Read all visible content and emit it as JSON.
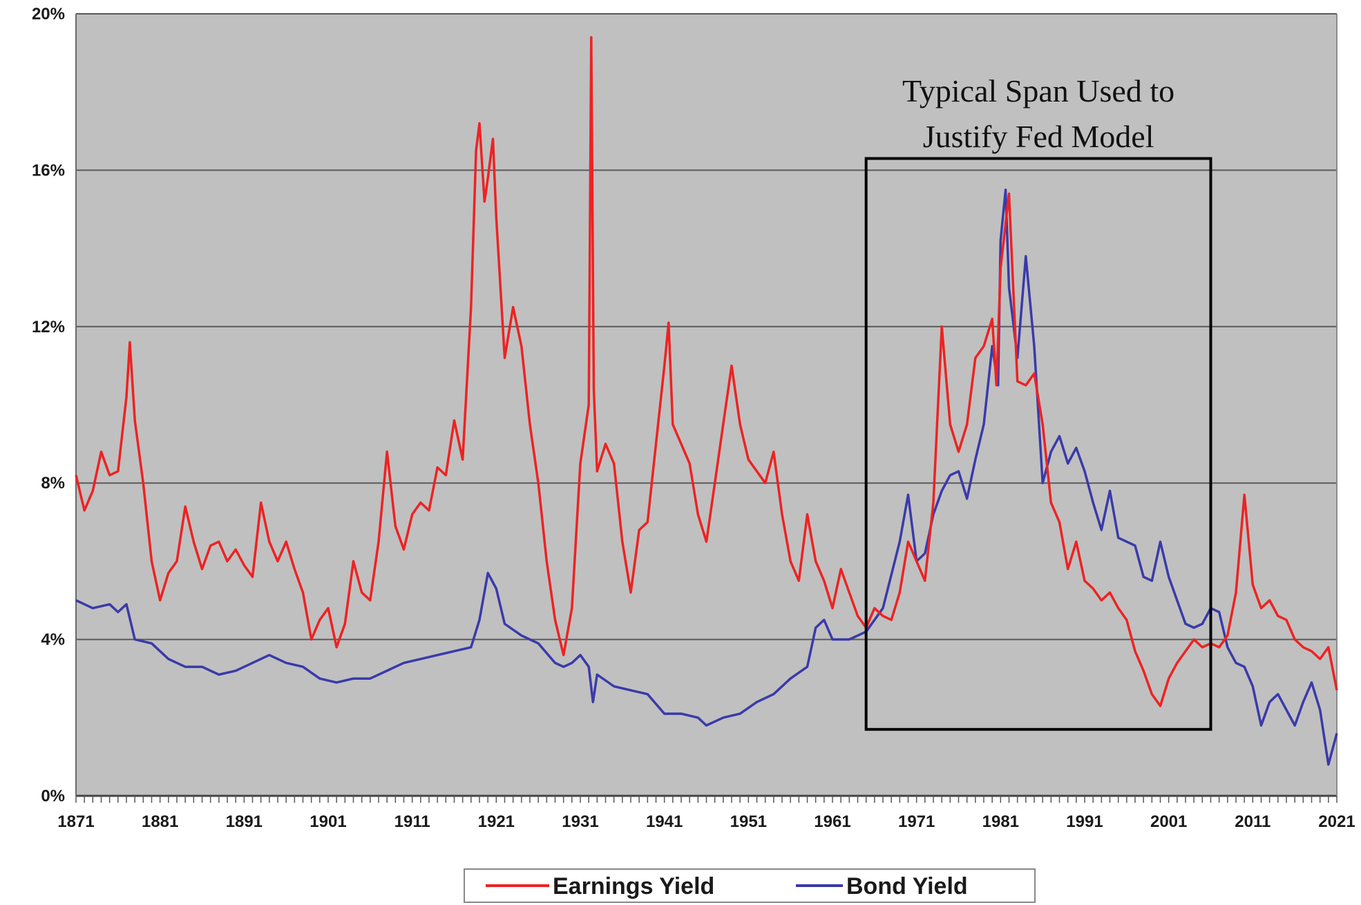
{
  "chart_data": {
    "type": "line",
    "title": "",
    "xlabel": "",
    "ylabel": "",
    "xlim": [
      1871,
      2021
    ],
    "ylim": [
      0,
      20
    ],
    "x_ticks": [
      "1871",
      "1881",
      "1891",
      "1901",
      "1911",
      "1921",
      "1931",
      "1941",
      "1951",
      "1961",
      "1971",
      "1981",
      "1991",
      "2001",
      "2011",
      "2021"
    ],
    "y_ticks": [
      {
        "value": 0,
        "label": "0%"
      },
      {
        "value": 4,
        "label": "4%"
      },
      {
        "value": 8,
        "label": "8%"
      },
      {
        "value": 12,
        "label": "12%"
      },
      {
        "value": 16,
        "label": "16%"
      },
      {
        "value": 20,
        "label": "20%"
      }
    ],
    "grid": true,
    "legend_position": "bottom-center",
    "plot_background": "#c0c0c0",
    "series": [
      {
        "name": "Earnings Yield",
        "color": "#ee2222",
        "points": [
          [
            1871,
            8.2
          ],
          [
            1872,
            7.3
          ],
          [
            1873,
            7.8
          ],
          [
            1874,
            8.8
          ],
          [
            1875,
            8.2
          ],
          [
            1876,
            8.3
          ],
          [
            1877,
            10.2
          ],
          [
            1877.4,
            11.6
          ],
          [
            1878,
            9.6
          ],
          [
            1879,
            8.0
          ],
          [
            1880,
            6.0
          ],
          [
            1881,
            5.0
          ],
          [
            1882,
            5.7
          ],
          [
            1883,
            6.0
          ],
          [
            1884,
            7.4
          ],
          [
            1885,
            6.5
          ],
          [
            1886,
            5.8
          ],
          [
            1887,
            6.4
          ],
          [
            1888,
            6.5
          ],
          [
            1889,
            6.0
          ],
          [
            1890,
            6.3
          ],
          [
            1891,
            5.9
          ],
          [
            1892,
            5.6
          ],
          [
            1893,
            7.5
          ],
          [
            1894,
            6.5
          ],
          [
            1895,
            6.0
          ],
          [
            1896,
            6.5
          ],
          [
            1897,
            5.8
          ],
          [
            1898,
            5.2
          ],
          [
            1899,
            4.0
          ],
          [
            1900,
            4.5
          ],
          [
            1901,
            4.8
          ],
          [
            1902,
            3.8
          ],
          [
            1903,
            4.4
          ],
          [
            1904,
            6.0
          ],
          [
            1905,
            5.2
          ],
          [
            1906,
            5.0
          ],
          [
            1907,
            6.5
          ],
          [
            1908,
            8.8
          ],
          [
            1909,
            6.9
          ],
          [
            1910,
            6.3
          ],
          [
            1911,
            7.2
          ],
          [
            1912,
            7.5
          ],
          [
            1913,
            7.3
          ],
          [
            1914,
            8.4
          ],
          [
            1915,
            8.2
          ],
          [
            1916,
            9.6
          ],
          [
            1917,
            8.6
          ],
          [
            1918,
            12.5
          ],
          [
            1918.6,
            16.5
          ],
          [
            1919,
            17.2
          ],
          [
            1919.6,
            15.2
          ],
          [
            1920,
            15.8
          ],
          [
            1920.6,
            16.8
          ],
          [
            1921,
            14.8
          ],
          [
            1922,
            11.2
          ],
          [
            1923,
            12.5
          ],
          [
            1924,
            11.5
          ],
          [
            1925,
            9.5
          ],
          [
            1926,
            8.0
          ],
          [
            1927,
            6.0
          ],
          [
            1928,
            4.5
          ],
          [
            1929,
            3.6
          ],
          [
            1930,
            4.8
          ],
          [
            1931,
            8.5
          ],
          [
            1932,
            10.0
          ],
          [
            1932.3,
            19.4
          ],
          [
            1932.6,
            10.4
          ],
          [
            1933,
            8.3
          ],
          [
            1934,
            9.0
          ],
          [
            1935,
            8.5
          ],
          [
            1936,
            6.5
          ],
          [
            1937,
            5.2
          ],
          [
            1938,
            6.8
          ],
          [
            1939,
            7.0
          ],
          [
            1940,
            9.0
          ],
          [
            1941,
            11.0
          ],
          [
            1941.5,
            12.1
          ],
          [
            1942,
            9.5
          ],
          [
            1943,
            9.0
          ],
          [
            1944,
            8.5
          ],
          [
            1945,
            7.2
          ],
          [
            1946,
            6.5
          ],
          [
            1947,
            8.0
          ],
          [
            1948,
            9.5
          ],
          [
            1949,
            11.0
          ],
          [
            1950,
            9.5
          ],
          [
            1951,
            8.6
          ],
          [
            1952,
            8.3
          ],
          [
            1953,
            8.0
          ],
          [
            1954,
            8.8
          ],
          [
            1955,
            7.2
          ],
          [
            1956,
            6.0
          ],
          [
            1957,
            5.5
          ],
          [
            1958,
            7.2
          ],
          [
            1959,
            6.0
          ],
          [
            1960,
            5.5
          ],
          [
            1961,
            4.8
          ],
          [
            1962,
            5.8
          ],
          [
            1963,
            5.2
          ],
          [
            1964,
            4.6
          ],
          [
            1965,
            4.3
          ],
          [
            1966,
            4.8
          ],
          [
            1967,
            4.6
          ],
          [
            1968,
            4.5
          ],
          [
            1969,
            5.2
          ],
          [
            1970,
            6.5
          ],
          [
            1971,
            6.0
          ],
          [
            1972,
            5.5
          ],
          [
            1973,
            7.5
          ],
          [
            1974,
            12.0
          ],
          [
            1975,
            9.5
          ],
          [
            1976,
            8.8
          ],
          [
            1977,
            9.5
          ],
          [
            1978,
            11.2
          ],
          [
            1979,
            11.5
          ],
          [
            1980,
            12.2
          ],
          [
            1980.5,
            10.5
          ],
          [
            1981,
            13.5
          ],
          [
            1982,
            15.4
          ],
          [
            1983,
            10.6
          ],
          [
            1984,
            10.5
          ],
          [
            1985,
            10.8
          ],
          [
            1986,
            9.5
          ],
          [
            1987,
            7.5
          ],
          [
            1988,
            7.0
          ],
          [
            1989,
            5.8
          ],
          [
            1990,
            6.5
          ],
          [
            1991,
            5.5
          ],
          [
            1992,
            5.3
          ],
          [
            1993,
            5.0
          ],
          [
            1994,
            5.2
          ],
          [
            1995,
            4.8
          ],
          [
            1996,
            4.5
          ],
          [
            1997,
            3.7
          ],
          [
            1998,
            3.2
          ],
          [
            1999,
            2.6
          ],
          [
            2000,
            2.3
          ],
          [
            2001,
            3.0
          ],
          [
            2002,
            3.4
          ],
          [
            2003,
            3.7
          ],
          [
            2004,
            4.0
          ],
          [
            2005,
            3.8
          ],
          [
            2006,
            3.9
          ],
          [
            2007,
            3.8
          ],
          [
            2008,
            4.1
          ],
          [
            2009,
            5.2
          ],
          [
            2010,
            7.7
          ],
          [
            2011,
            5.4
          ],
          [
            2012,
            4.8
          ],
          [
            2013,
            5.0
          ],
          [
            2014,
            4.6
          ],
          [
            2015,
            4.5
          ],
          [
            2016,
            4.0
          ],
          [
            2017,
            3.8
          ],
          [
            2018,
            3.7
          ],
          [
            2019,
            3.5
          ],
          [
            2020,
            3.8
          ],
          [
            2021,
            2.7
          ]
        ]
      },
      {
        "name": "Bond Yield",
        "color": "#3a3aaa",
        "points": [
          [
            1871,
            5.0
          ],
          [
            1873,
            4.8
          ],
          [
            1875,
            4.9
          ],
          [
            1876,
            4.7
          ],
          [
            1877,
            4.9
          ],
          [
            1878,
            4.0
          ],
          [
            1880,
            3.9
          ],
          [
            1882,
            3.5
          ],
          [
            1884,
            3.3
          ],
          [
            1886,
            3.3
          ],
          [
            1888,
            3.1
          ],
          [
            1890,
            3.2
          ],
          [
            1892,
            3.4
          ],
          [
            1894,
            3.6
          ],
          [
            1896,
            3.4
          ],
          [
            1898,
            3.3
          ],
          [
            1900,
            3.0
          ],
          [
            1902,
            2.9
          ],
          [
            1904,
            3.0
          ],
          [
            1906,
            3.0
          ],
          [
            1908,
            3.2
          ],
          [
            1910,
            3.4
          ],
          [
            1912,
            3.5
          ],
          [
            1914,
            3.6
          ],
          [
            1916,
            3.7
          ],
          [
            1918,
            3.8
          ],
          [
            1919,
            4.5
          ],
          [
            1920,
            5.7
          ],
          [
            1921,
            5.3
          ],
          [
            1922,
            4.4
          ],
          [
            1924,
            4.1
          ],
          [
            1926,
            3.9
          ],
          [
            1928,
            3.4
          ],
          [
            1929,
            3.3
          ],
          [
            1930,
            3.4
          ],
          [
            1931,
            3.6
          ],
          [
            1932,
            3.3
          ],
          [
            1932.5,
            2.4
          ],
          [
            1933,
            3.1
          ],
          [
            1935,
            2.8
          ],
          [
            1937,
            2.7
          ],
          [
            1939,
            2.6
          ],
          [
            1941,
            2.1
          ],
          [
            1943,
            2.1
          ],
          [
            1945,
            2.0
          ],
          [
            1946,
            1.8
          ],
          [
            1948,
            2.0
          ],
          [
            1950,
            2.1
          ],
          [
            1952,
            2.4
          ],
          [
            1954,
            2.6
          ],
          [
            1956,
            3.0
          ],
          [
            1958,
            3.3
          ],
          [
            1959,
            4.3
          ],
          [
            1960,
            4.5
          ],
          [
            1961,
            4.0
          ],
          [
            1963,
            4.0
          ],
          [
            1965,
            4.2
          ],
          [
            1967,
            4.8
          ],
          [
            1969,
            6.5
          ],
          [
            1970,
            7.7
          ],
          [
            1971,
            6.0
          ],
          [
            1972,
            6.2
          ],
          [
            1973,
            7.2
          ],
          [
            1974,
            7.8
          ],
          [
            1975,
            8.2
          ],
          [
            1976,
            8.3
          ],
          [
            1977,
            7.6
          ],
          [
            1978,
            8.6
          ],
          [
            1979,
            9.5
          ],
          [
            1980,
            11.5
          ],
          [
            1980.7,
            10.5
          ],
          [
            1981,
            14.2
          ],
          [
            1981.6,
            15.5
          ],
          [
            1982,
            13.0
          ],
          [
            1983,
            11.2
          ],
          [
            1984,
            13.8
          ],
          [
            1985,
            11.5
          ],
          [
            1986,
            8.0
          ],
          [
            1987,
            8.8
          ],
          [
            1988,
            9.2
          ],
          [
            1989,
            8.5
          ],
          [
            1990,
            8.9
          ],
          [
            1991,
            8.3
          ],
          [
            1992,
            7.5
          ],
          [
            1993,
            6.8
          ],
          [
            1994,
            7.8
          ],
          [
            1995,
            6.6
          ],
          [
            1996,
            6.5
          ],
          [
            1997,
            6.4
          ],
          [
            1998,
            5.6
          ],
          [
            1999,
            5.5
          ],
          [
            2000,
            6.5
          ],
          [
            2001,
            5.6
          ],
          [
            2002,
            5.0
          ],
          [
            2003,
            4.4
          ],
          [
            2004,
            4.3
          ],
          [
            2005,
            4.4
          ],
          [
            2006,
            4.8
          ],
          [
            2007,
            4.7
          ],
          [
            2008,
            3.8
          ],
          [
            2009,
            3.4
          ],
          [
            2010,
            3.3
          ],
          [
            2011,
            2.8
          ],
          [
            2012,
            1.8
          ],
          [
            2013,
            2.4
          ],
          [
            2014,
            2.6
          ],
          [
            2015,
            2.2
          ],
          [
            2016,
            1.8
          ],
          [
            2017,
            2.4
          ],
          [
            2018,
            2.9
          ],
          [
            2019,
            2.2
          ],
          [
            2020,
            0.8
          ],
          [
            2021,
            1.6
          ]
        ]
      }
    ],
    "annotations": [
      {
        "type": "box",
        "x_start": 1965,
        "x_end": 2006,
        "y_low": 1.7,
        "y_high": 16.3
      },
      {
        "type": "text",
        "lines": [
          "Typical Span Used to",
          "Justify Fed Model"
        ]
      }
    ]
  }
}
